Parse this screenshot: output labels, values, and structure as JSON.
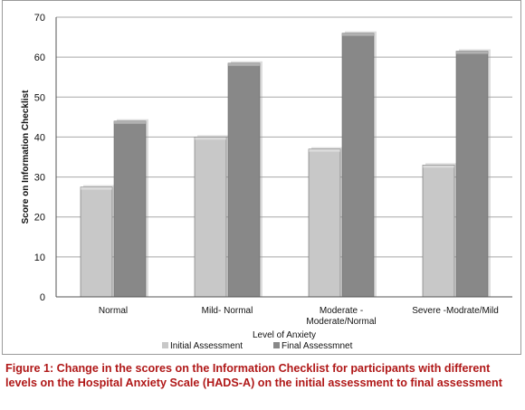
{
  "chart_data": {
    "type": "bar",
    "xlabel": "Level of Anxiety",
    "ylabel": "Score on Information Checklist",
    "ylim": [
      0,
      70
    ],
    "yticks": [
      "0",
      "10",
      "20",
      "30",
      "40",
      "50",
      "60",
      "70"
    ],
    "categories": [
      [
        "Normal"
      ],
      [
        "Mild- Normal"
      ],
      [
        "Moderate -",
        "Moderate/Normal"
      ],
      [
        "Severe -Modrate/Mild"
      ]
    ],
    "series": [
      {
        "name": "Initial Assessment",
        "values": [
          27.5,
          40,
          37,
          33
        ],
        "color": "#c8c8c8"
      },
      {
        "name": "Final Assessmnet",
        "values": [
          44,
          58.5,
          66,
          61.5
        ],
        "color": "#888888"
      }
    ],
    "legend_position": "bottom",
    "grid": true
  },
  "caption": "Figure 1: Change in the scores on the Information Checklist for participants with different levels on the Hospital Anxiety Scale (HADS-A) on the initial assessment to final assessment"
}
